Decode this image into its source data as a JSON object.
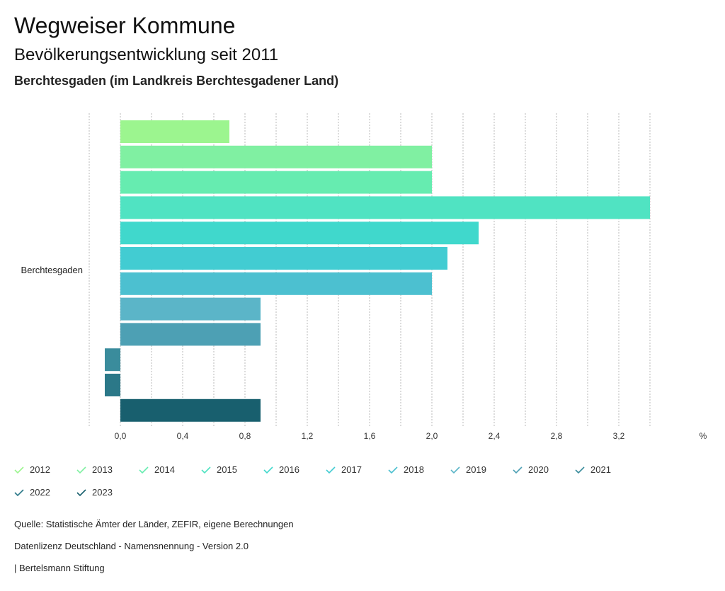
{
  "header": {
    "title": "Wegweiser Kommune",
    "subtitle": "Bevölkerungsentwicklung seit 2011",
    "region": "Berchtesgaden (im Landkreis Berchtesgadener Land)"
  },
  "chart_data": {
    "type": "bar",
    "orientation": "horizontal",
    "categories": [
      "Berchtesgaden"
    ],
    "unit": "%",
    "xlim": [
      -0.2,
      3.6
    ],
    "xticks": [
      0.0,
      0.4,
      0.8,
      1.2,
      1.6,
      2.0,
      2.4,
      2.8,
      3.2
    ],
    "xtick_labels": [
      "0,0",
      "0,4",
      "0,8",
      "1,2",
      "1,6",
      "2,0",
      "2,4",
      "2,8",
      "3,2"
    ],
    "grid": true,
    "legend_position": "bottom",
    "series": [
      {
        "name": "2012",
        "values": [
          0.7
        ],
        "color": "#9cf58f"
      },
      {
        "name": "2013",
        "values": [
          2.0
        ],
        "color": "#80f0a2"
      },
      {
        "name": "2014",
        "values": [
          2.0
        ],
        "color": "#66ecb0"
      },
      {
        "name": "2015",
        "values": [
          3.4
        ],
        "color": "#50e3c2"
      },
      {
        "name": "2016",
        "values": [
          2.3
        ],
        "color": "#40d8cc"
      },
      {
        "name": "2017",
        "values": [
          2.1
        ],
        "color": "#42ccd2"
      },
      {
        "name": "2018",
        "values": [
          2.0
        ],
        "color": "#4cc0d0"
      },
      {
        "name": "2019",
        "values": [
          0.9
        ],
        "color": "#5bb5c8"
      },
      {
        "name": "2020",
        "values": [
          0.9
        ],
        "color": "#4da0b4"
      },
      {
        "name": "2021",
        "values": [
          -0.1
        ],
        "color": "#3a8c9c"
      },
      {
        "name": "2022",
        "values": [
          -0.1
        ],
        "color": "#2b7888"
      },
      {
        "name": "2023",
        "values": [
          0.9
        ],
        "color": "#185f6e"
      }
    ]
  },
  "footer": {
    "source": "Quelle: Statistische Ämter der Länder, ZEFIR, eigene Berechnungen",
    "license": "Datenlizenz Deutschland - Namensnennung - Version 2.0",
    "publisher": "| Bertelsmann Stiftung"
  }
}
